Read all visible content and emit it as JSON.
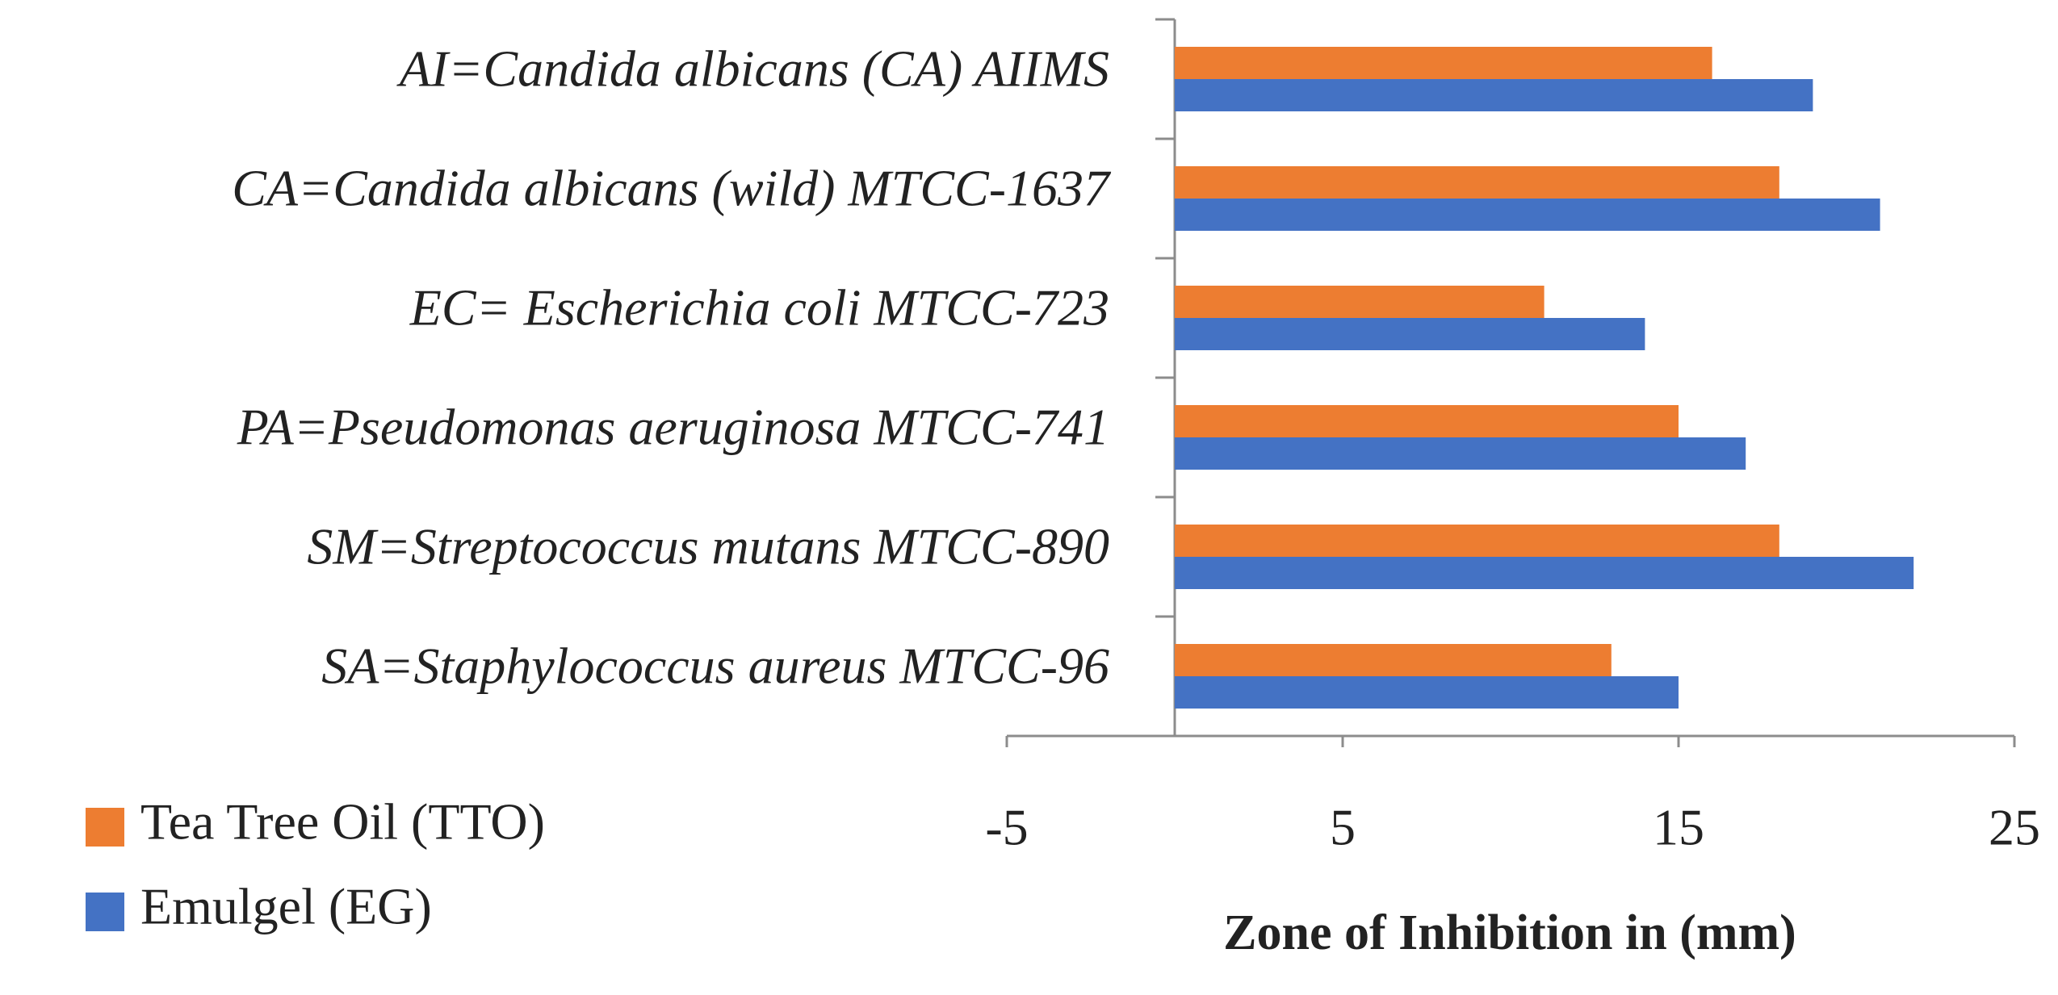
{
  "chart_data": {
    "type": "bar",
    "orientation": "horizontal",
    "categories": [
      "AI=Candida albicans (CA) AIIMS",
      "CA=Candida albicans (wild) MTCC-1637",
      "EC= Escherichia coli MTCC-723",
      "PA=Pseudomonas aeruginosa MTCC-741",
      "SM=Streptococcus mutans MTCC-890",
      "SA=Staphylococcus aureus MTCC-96"
    ],
    "series": [
      {
        "name": "Tea Tree Oil (TTO)",
        "color": "#ed7d31",
        "values": [
          16,
          18,
          11,
          15,
          18,
          13
        ]
      },
      {
        "name": "Emulgel (EG)",
        "color": "#4472c4",
        "values": [
          19,
          21,
          14,
          17,
          22,
          15
        ]
      }
    ],
    "xlabel": "Zone of Inhibition in (mm)",
    "xlim": [
      -5,
      25
    ],
    "xticks": [
      -5,
      5,
      15,
      25
    ],
    "grid": false,
    "legend": "bottom-left"
  }
}
